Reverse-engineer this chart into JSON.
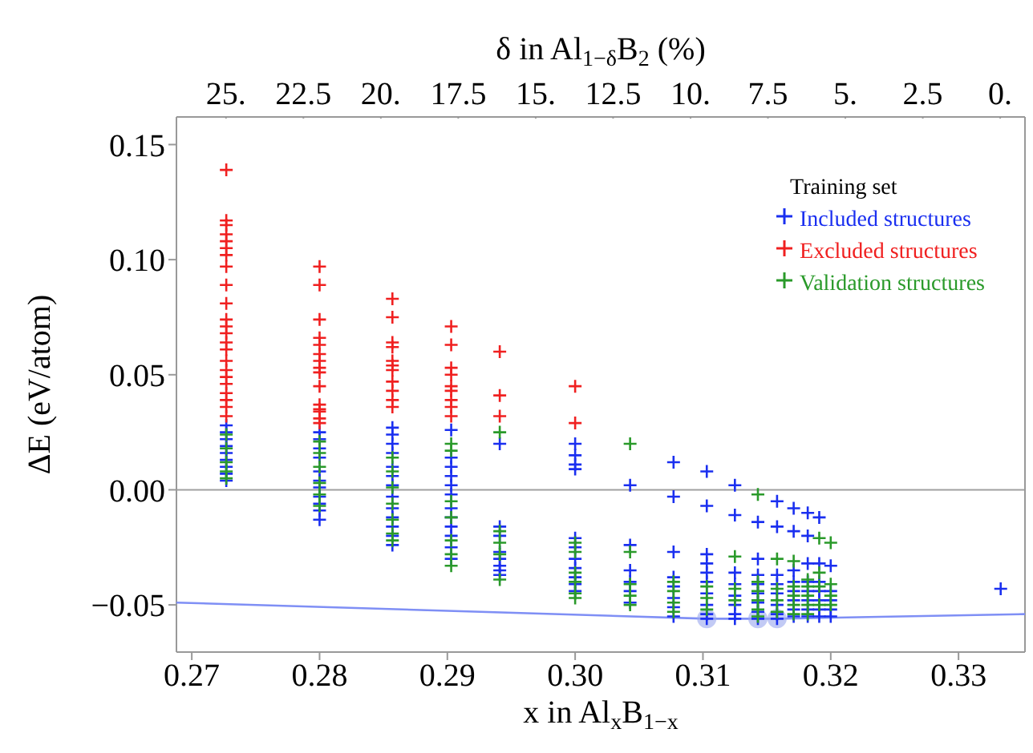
{
  "chart_data": {
    "type": "scatter",
    "xlabel": "x in Al$_{x}$B$_{1−x}$",
    "ylabel": "ΔE (eV/atom)",
    "x2label": "δ in Al$_{1−δ}$B$_{2}$ (%)",
    "legend_title": "Training set",
    "legend": "top right",
    "marker": "cross",
    "xlim": [
      0.2688,
      0.3352
    ],
    "ylim": [
      -0.0705,
      0.162
    ],
    "xticks": [
      {
        "value": 0.27,
        "label": "0.27"
      },
      {
        "value": 0.28,
        "label": "0.28"
      },
      {
        "value": 0.29,
        "label": "0.29"
      },
      {
        "value": 0.3,
        "label": "0.30"
      },
      {
        "value": 0.31,
        "label": "0.31"
      },
      {
        "value": 0.32,
        "label": "0.32"
      },
      {
        "value": 0.33,
        "label": "0.33"
      }
    ],
    "x2lim": [
      26.6,
      -0.8
    ],
    "x2ticks": [
      {
        "value": 25,
        "label": "25."
      },
      22.5,
      {
        "value": 20,
        "label": "20."
      },
      17.5,
      {
        "value": 15,
        "label": "15."
      },
      12.5,
      {
        "value": 10,
        "label": "10."
      },
      7.5,
      {
        "value": 5,
        "label": "5."
      },
      2.5,
      {
        "value": 0,
        "label": "0."
      }
    ],
    "yticks": [
      {
        "value": -0.05,
        "label": "−0.05"
      },
      {
        "value": 0,
        "label": "0.00"
      },
      {
        "value": 0.05,
        "label": "0.05"
      },
      {
        "value": 0.1,
        "label": "0.10"
      },
      {
        "value": 0.15,
        "label": "0.15"
      }
    ],
    "ref_lines": [
      {
        "axis": "y",
        "value": 0,
        "color": "#a0a0a0"
      }
    ],
    "series": [
      {
        "name": "Included structures",
        "color": "#1a2ff0",
        "x": [
          0.2727,
          0.2727,
          0.2727,
          0.2727,
          0.2727,
          0.2727,
          0.2727,
          0.2727,
          0.2727,
          0.28,
          0.28,
          0.28,
          0.28,
          0.28,
          0.28,
          0.28,
          0.28,
          0.28,
          0.28,
          0.28,
          0.2857,
          0.2857,
          0.2857,
          0.2857,
          0.2857,
          0.2857,
          0.2857,
          0.2857,
          0.2857,
          0.2857,
          0.2857,
          0.2857,
          0.2857,
          0.2903,
          0.2903,
          0.2903,
          0.2903,
          0.2903,
          0.2903,
          0.2903,
          0.2903,
          0.2903,
          0.2903,
          0.2903,
          0.2903,
          0.2941,
          0.2941,
          0.2941,
          0.2941,
          0.2941,
          0.2941,
          0.2941,
          0.2941,
          0.3,
          0.3,
          0.3,
          0.3,
          0.3,
          0.3,
          0.3,
          0.3,
          0.3,
          0.3,
          0.3,
          0.3043,
          0.3043,
          0.3043,
          0.3043,
          0.3043,
          0.3043,
          0.3077,
          0.3077,
          0.3077,
          0.3077,
          0.3077,
          0.3077,
          0.3077,
          0.3077,
          0.3103,
          0.3103,
          0.3103,
          0.3103,
          0.3103,
          0.3103,
          0.3103,
          0.3103,
          0.3103,
          0.3103,
          0.3125,
          0.3125,
          0.3125,
          0.3125,
          0.3125,
          0.3125,
          0.3125,
          0.3125,
          0.3143,
          0.3143,
          0.3143,
          0.3143,
          0.3143,
          0.3143,
          0.3143,
          0.3143,
          0.3158,
          0.3158,
          0.3158,
          0.3158,
          0.3158,
          0.3158,
          0.3158,
          0.3158,
          0.3171,
          0.3171,
          0.3171,
          0.3171,
          0.3171,
          0.3171,
          0.3171,
          0.3171,
          0.3182,
          0.3182,
          0.3182,
          0.3182,
          0.3182,
          0.3182,
          0.3182,
          0.3182,
          0.3191,
          0.3191,
          0.3191,
          0.3191,
          0.3191,
          0.3191,
          0.3191,
          0.32,
          0.32,
          0.32,
          0.32,
          0.32,
          0.3333
        ],
        "values": [
          0.028,
          0.025,
          0.022,
          0.019,
          0.016,
          0.013,
          0.01,
          0.007,
          0.004,
          0.025,
          0.022,
          0.018,
          0.014,
          0.008,
          0.004,
          0.001,
          -0.003,
          -0.006,
          -0.009,
          -0.013,
          0.027,
          0.024,
          0.02,
          0.016,
          0.01,
          0.006,
          0.002,
          -0.003,
          -0.008,
          -0.012,
          -0.016,
          -0.02,
          -0.024,
          0.026,
          0.014,
          0.01,
          0.006,
          0.002,
          -0.002,
          -0.008,
          -0.012,
          -0.016,
          -0.02,
          -0.025,
          -0.03,
          0.02,
          -0.016,
          -0.02,
          -0.027,
          -0.03,
          -0.033,
          -0.035,
          -0.037,
          0.02,
          0.015,
          0.011,
          0.009,
          -0.021,
          -0.025,
          -0.03,
          -0.034,
          -0.038,
          -0.041,
          -0.044,
          0.002,
          -0.024,
          -0.035,
          -0.04,
          -0.044,
          -0.049,
          0.012,
          -0.003,
          -0.027,
          -0.038,
          -0.042,
          -0.047,
          -0.051,
          -0.055,
          0.008,
          -0.007,
          -0.028,
          -0.032,
          -0.036,
          -0.04,
          -0.045,
          -0.05,
          -0.054,
          -0.056,
          0.002,
          -0.011,
          -0.036,
          -0.041,
          -0.046,
          -0.05,
          -0.054,
          -0.056,
          -0.014,
          -0.03,
          -0.037,
          -0.041,
          -0.045,
          -0.049,
          -0.053,
          -0.056,
          -0.005,
          -0.016,
          -0.037,
          -0.041,
          -0.045,
          -0.05,
          -0.054,
          -0.056,
          -0.008,
          -0.018,
          -0.035,
          -0.04,
          -0.044,
          -0.048,
          -0.052,
          -0.055,
          -0.01,
          -0.02,
          -0.032,
          -0.04,
          -0.044,
          -0.048,
          -0.052,
          -0.055,
          -0.012,
          -0.032,
          -0.04,
          -0.044,
          -0.048,
          -0.052,
          -0.055,
          -0.033,
          -0.044,
          -0.048,
          -0.052,
          -0.055,
          -0.043
        ]
      },
      {
        "name": "Excluded structures",
        "color": "#f02020",
        "x": [
          0.2727,
          0.2727,
          0.2727,
          0.2727,
          0.2727,
          0.2727,
          0.2727,
          0.2727,
          0.2727,
          0.2727,
          0.2727,
          0.2727,
          0.2727,
          0.2727,
          0.2727,
          0.2727,
          0.2727,
          0.2727,
          0.2727,
          0.2727,
          0.2727,
          0.2727,
          0.2727,
          0.28,
          0.28,
          0.28,
          0.28,
          0.28,
          0.28,
          0.28,
          0.28,
          0.28,
          0.28,
          0.28,
          0.28,
          0.28,
          0.28,
          0.28,
          0.2857,
          0.2857,
          0.2857,
          0.2857,
          0.2857,
          0.2857,
          0.2857,
          0.2857,
          0.2857,
          0.2857,
          0.2857,
          0.2903,
          0.2903,
          0.2903,
          0.2903,
          0.2903,
          0.2903,
          0.2903,
          0.2903,
          0.2903,
          0.2941,
          0.2941,
          0.2941,
          0.3,
          0.3
        ],
        "values": [
          0.139,
          0.117,
          0.115,
          0.111,
          0.108,
          0.105,
          0.102,
          0.097,
          0.089,
          0.081,
          0.074,
          0.071,
          0.068,
          0.064,
          0.061,
          0.056,
          0.052,
          0.049,
          0.046,
          0.042,
          0.039,
          0.036,
          0.032,
          0.097,
          0.089,
          0.074,
          0.066,
          0.063,
          0.059,
          0.056,
          0.053,
          0.051,
          0.045,
          0.037,
          0.035,
          0.034,
          0.031,
          0.029,
          0.083,
          0.075,
          0.064,
          0.062,
          0.056,
          0.054,
          0.052,
          0.047,
          0.043,
          0.039,
          0.036,
          0.071,
          0.063,
          0.053,
          0.05,
          0.045,
          0.043,
          0.039,
          0.036,
          0.032,
          0.06,
          0.041,
          0.032,
          0.045,
          0.029
        ]
      },
      {
        "name": "Validation structures",
        "color": "#2a9a2a",
        "x": [
          0.2727,
          0.2727,
          0.2727,
          0.2727,
          0.2727,
          0.28,
          0.28,
          0.28,
          0.28,
          0.28,
          0.28,
          0.2857,
          0.2857,
          0.2857,
          0.2857,
          0.2857,
          0.2857,
          0.2857,
          0.2903,
          0.2903,
          0.2903,
          0.2903,
          0.2903,
          0.2903,
          0.2903,
          0.2941,
          0.2941,
          0.2941,
          0.2941,
          0.2941,
          0.3,
          0.3,
          0.3,
          0.3,
          0.3,
          0.3,
          0.3043,
          0.3043,
          0.3043,
          0.3043,
          0.3043,
          0.3077,
          0.3077,
          0.3077,
          0.3077,
          0.3103,
          0.3103,
          0.3103,
          0.3125,
          0.3125,
          0.3125,
          0.3143,
          0.3143,
          0.3143,
          0.3143,
          0.3143,
          0.3143,
          0.3158,
          0.3158,
          0.3158,
          0.3158,
          0.3171,
          0.3171,
          0.3171,
          0.3171,
          0.3171,
          0.3182,
          0.3182,
          0.3182,
          0.3182,
          0.3182,
          0.3191,
          0.3191,
          0.3191,
          0.3191,
          0.32,
          0.32,
          0.32,
          0.32
        ],
        "values": [
          0.024,
          0.018,
          0.012,
          0.008,
          0.005,
          0.021,
          0.016,
          0.01,
          0.003,
          -0.002,
          -0.007,
          0.014,
          0.008,
          0.001,
          -0.006,
          -0.013,
          -0.019,
          -0.022,
          0.02,
          0.017,
          -0.005,
          -0.012,
          -0.022,
          -0.028,
          -0.033,
          0.025,
          -0.018,
          -0.023,
          -0.028,
          -0.039,
          -0.023,
          -0.027,
          -0.036,
          -0.04,
          -0.045,
          -0.047,
          0.02,
          -0.027,
          -0.041,
          -0.046,
          -0.05,
          -0.04,
          -0.044,
          -0.049,
          -0.053,
          -0.042,
          -0.047,
          -0.052,
          -0.029,
          -0.043,
          -0.048,
          -0.002,
          -0.04,
          -0.044,
          -0.048,
          -0.052,
          -0.055,
          -0.03,
          -0.043,
          -0.048,
          -0.053,
          -0.031,
          -0.042,
          -0.046,
          -0.05,
          -0.054,
          -0.039,
          -0.042,
          -0.046,
          -0.05,
          -0.054,
          -0.021,
          -0.036,
          -0.042,
          -0.05,
          -0.023,
          -0.041,
          -0.046,
          -0.05
        ]
      },
      {
        "color": "#7f8ff5",
        "type": "line",
        "marker": "none",
        "x": [
          0.2688,
          0.3103,
          0.3143,
          0.3158,
          0.3352
        ],
        "values": [
          -0.049,
          -0.056,
          -0.056,
          -0.056,
          -0.054
        ]
      },
      {
        "color": "#9aa6ee",
        "marker": "circle",
        "x": [
          0.3103,
          0.3143,
          0.3158
        ],
        "values": [
          -0.056,
          -0.056,
          -0.056
        ]
      }
    ]
  }
}
